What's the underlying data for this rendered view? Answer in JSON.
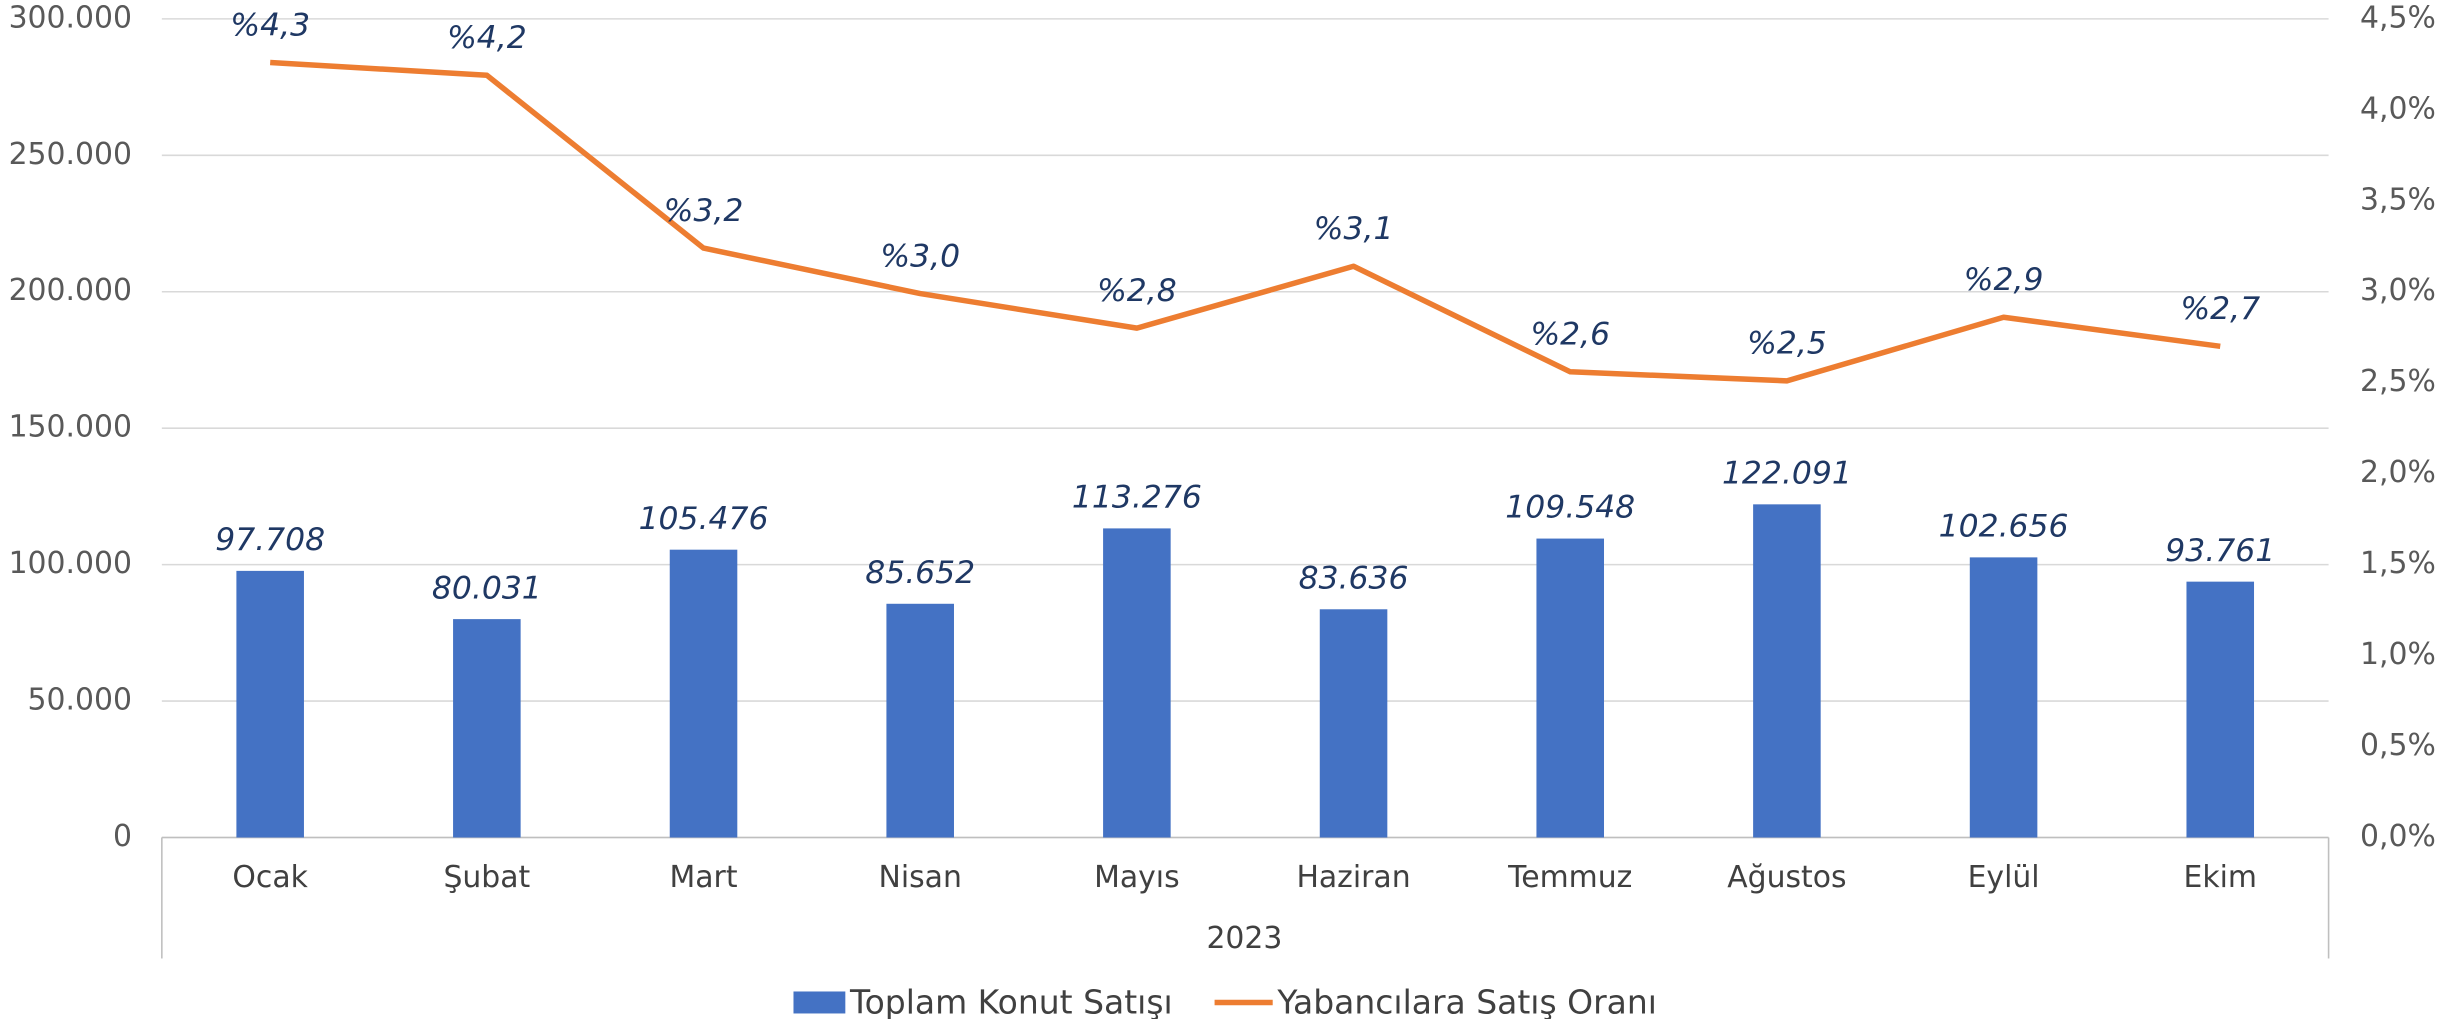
{
  "chart_data": {
    "type": "bar_line",
    "categories": [
      "Ocak",
      "Şubat",
      "Mart",
      "Nisan",
      "Mayıs",
      "Haziran",
      "Temmuz",
      "Ağustos",
      "Eylül",
      "Ekim"
    ],
    "xlabel": "2023",
    "series": [
      {
        "name": "Toplam Konut Satışı",
        "color": "#4472c4",
        "type": "bar",
        "values": [
          97708,
          80031,
          105476,
          85652,
          113276,
          83636,
          109548,
          122091,
          102656,
          93761
        ],
        "value_labels": [
          "97.708",
          "80.031",
          "105.476",
          "85.652",
          "113.276",
          "83.636",
          "109.548",
          "122.091",
          "102.656",
          "93.761"
        ]
      },
      {
        "name": "Yabancılara Satış Oranı",
        "color": "#ed7d31",
        "type": "line",
        "axis": "y2",
        "values": [
          4.26,
          4.19,
          3.24,
          2.99,
          2.8,
          3.14,
          2.56,
          2.51,
          2.86,
          2.7
        ],
        "value_labels": [
          "%4,3",
          "%4,2",
          "%3,2",
          "%3,0",
          "%2,8",
          "%3,1",
          "%2,6",
          "%2,5",
          "%2,9",
          "%2,7"
        ]
      }
    ],
    "ylim": [
      0,
      300000
    ],
    "yticks": [
      {
        "value": 0,
        "label": "0"
      },
      {
        "value": 50000,
        "label": "50.000"
      },
      {
        "value": 100000,
        "label": "100.000"
      },
      {
        "value": 150000,
        "label": "150.000"
      },
      {
        "value": 200000,
        "label": "200.000"
      },
      {
        "value": 250000,
        "label": "250.000"
      },
      {
        "value": 300000,
        "label": "300.000"
      }
    ],
    "y2lim": [
      0,
      4.5
    ],
    "y2ticks": [
      {
        "value": 0,
        "label": "0,0%"
      },
      {
        "value": 0.5,
        "label": "0,5%"
      },
      {
        "value": 1,
        "label": "1,0%"
      },
      {
        "value": 1.5,
        "label": "1,5%"
      },
      {
        "value": 2,
        "label": "2,0%"
      },
      {
        "value": 2.5,
        "label": "2,5%"
      },
      {
        "value": 3,
        "label": "3,0%"
      },
      {
        "value": 3.5,
        "label": "3,5%"
      },
      {
        "value": 4,
        "label": "4,0%"
      },
      {
        "value": 4.5,
        "label": "4,5%"
      }
    ],
    "grid": true
  }
}
